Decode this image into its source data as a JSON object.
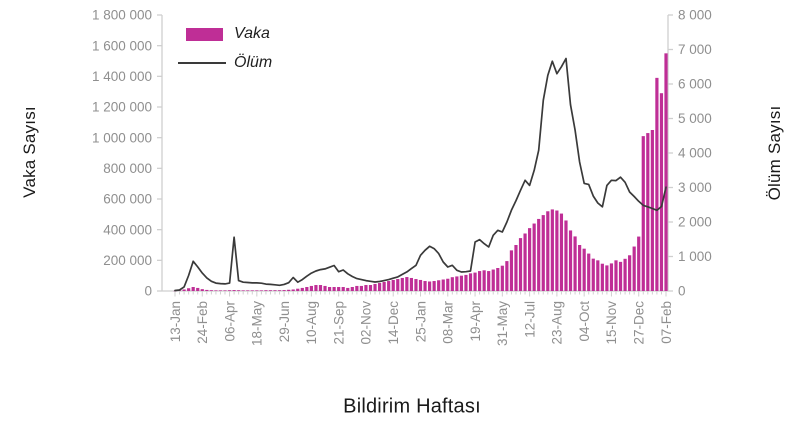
{
  "chart_data": {
    "type": "bar+line combo, weekly epidemic curve",
    "x_axis": {
      "title": "Bildirim Haftası",
      "weeks_total": 109,
      "label_every_n_weeks": 6,
      "tick_labels": [
        "13-Jan",
        "24-Feb",
        "06-Apr",
        "18-May",
        "29-Jun",
        "10-Aug",
        "21-Sep",
        "02-Nov",
        "14-Dec",
        "25-Jan",
        "08-Mar",
        "19-Apr",
        "31-May",
        "12-Jul",
        "23-Aug",
        "04-Oct",
        "15-Nov",
        "27-Dec",
        "07-Feb"
      ]
    },
    "left_axis": {
      "title": "Vaka Sayısı",
      "min": 0,
      "max": 1800000,
      "step": 200000,
      "tick_labels": [
        "0",
        "200 000",
        "400 000",
        "600 000",
        "800 000",
        "1 000 000",
        "1 200 000",
        "1 400 000",
        "1 600 000",
        "1 800 000"
      ]
    },
    "right_axis": {
      "title": "Ölüm Sayısı",
      "min": 0,
      "max": 8000,
      "step": 1000,
      "tick_labels": [
        "0",
        "1 000",
        "2 000",
        "3 000",
        "4 000",
        "5 000",
        "6 000",
        "7 000",
        "8 000"
      ]
    },
    "grid": "off",
    "legend_position": "top-left inside plot",
    "series": [
      {
        "name": "Vaka",
        "type": "bar",
        "axis": "left",
        "color": "#bf2e96",
        "values": [
          1000,
          4000,
          10000,
          18000,
          26000,
          20000,
          12000,
          7000,
          5000,
          4000,
          4000,
          4000,
          5000,
          6000,
          5000,
          4000,
          4000,
          4000,
          4000,
          4000,
          5000,
          5000,
          5000,
          5000,
          6000,
          8000,
          10000,
          15000,
          20000,
          26000,
          33000,
          39000,
          39000,
          33000,
          26000,
          26000,
          26000,
          26000,
          20000,
          26000,
          33000,
          33000,
          39000,
          39000,
          46000,
          52000,
          59000,
          65000,
          72000,
          78000,
          85000,
          91000,
          85000,
          78000,
          72000,
          65000,
          62000,
          65000,
          70000,
          75000,
          80000,
          90000,
          95000,
          100000,
          105000,
          115000,
          120000,
          130000,
          135000,
          130000,
          140000,
          150000,
          165000,
          195000,
          265000,
          300000,
          345000,
          375000,
          410000,
          440000,
          470000,
          495000,
          520000,
          532000,
          525000,
          505000,
          460000,
          395000,
          356000,
          300000,
          276000,
          244000,
          211000,
          200000,
          178000,
          167000,
          180000,
          200000,
          190000,
          210000,
          233000,
          290000,
          355000,
          1010000,
          1030000,
          1050000,
          1390000,
          1290000,
          1550000
        ]
      },
      {
        "name": "Ölüm",
        "type": "line",
        "axis": "right",
        "color": "#3a3a3a",
        "values": [
          15,
          30,
          120,
          450,
          860,
          700,
          520,
          380,
          280,
          230,
          215,
          205,
          230,
          1560,
          300,
          255,
          245,
          235,
          235,
          225,
          200,
          190,
          180,
          165,
          190,
          240,
          390,
          255,
          330,
          430,
          520,
          580,
          620,
          640,
          690,
          740,
          560,
          610,
          500,
          420,
          360,
          330,
          300,
          280,
          260,
          275,
          300,
          330,
          370,
          410,
          480,
          555,
          650,
          745,
          1035,
          1180,
          1295,
          1230,
          1085,
          840,
          695,
          745,
          600,
          550,
          560,
          580,
          1420,
          1490,
          1375,
          1275,
          1615,
          1760,
          1710,
          2000,
          2340,
          2620,
          2920,
          3210,
          3060,
          3500,
          4080,
          5530,
          6250,
          6660,
          6300,
          6500,
          6740,
          5400,
          4660,
          3740,
          3120,
          3090,
          2750,
          2550,
          2440,
          3060,
          3210,
          3200,
          3300,
          3150,
          2870,
          2740,
          2600,
          2480,
          2440,
          2390,
          2340,
          2450,
          3010
        ]
      }
    ],
    "style": {
      "bar_color": "#bf2e96",
      "line_color": "#3a3a3a",
      "axis_line_color": "#cfcfcf",
      "tick_label_color": "#8f8f8f",
      "text_color": "#1a1a1a"
    }
  }
}
